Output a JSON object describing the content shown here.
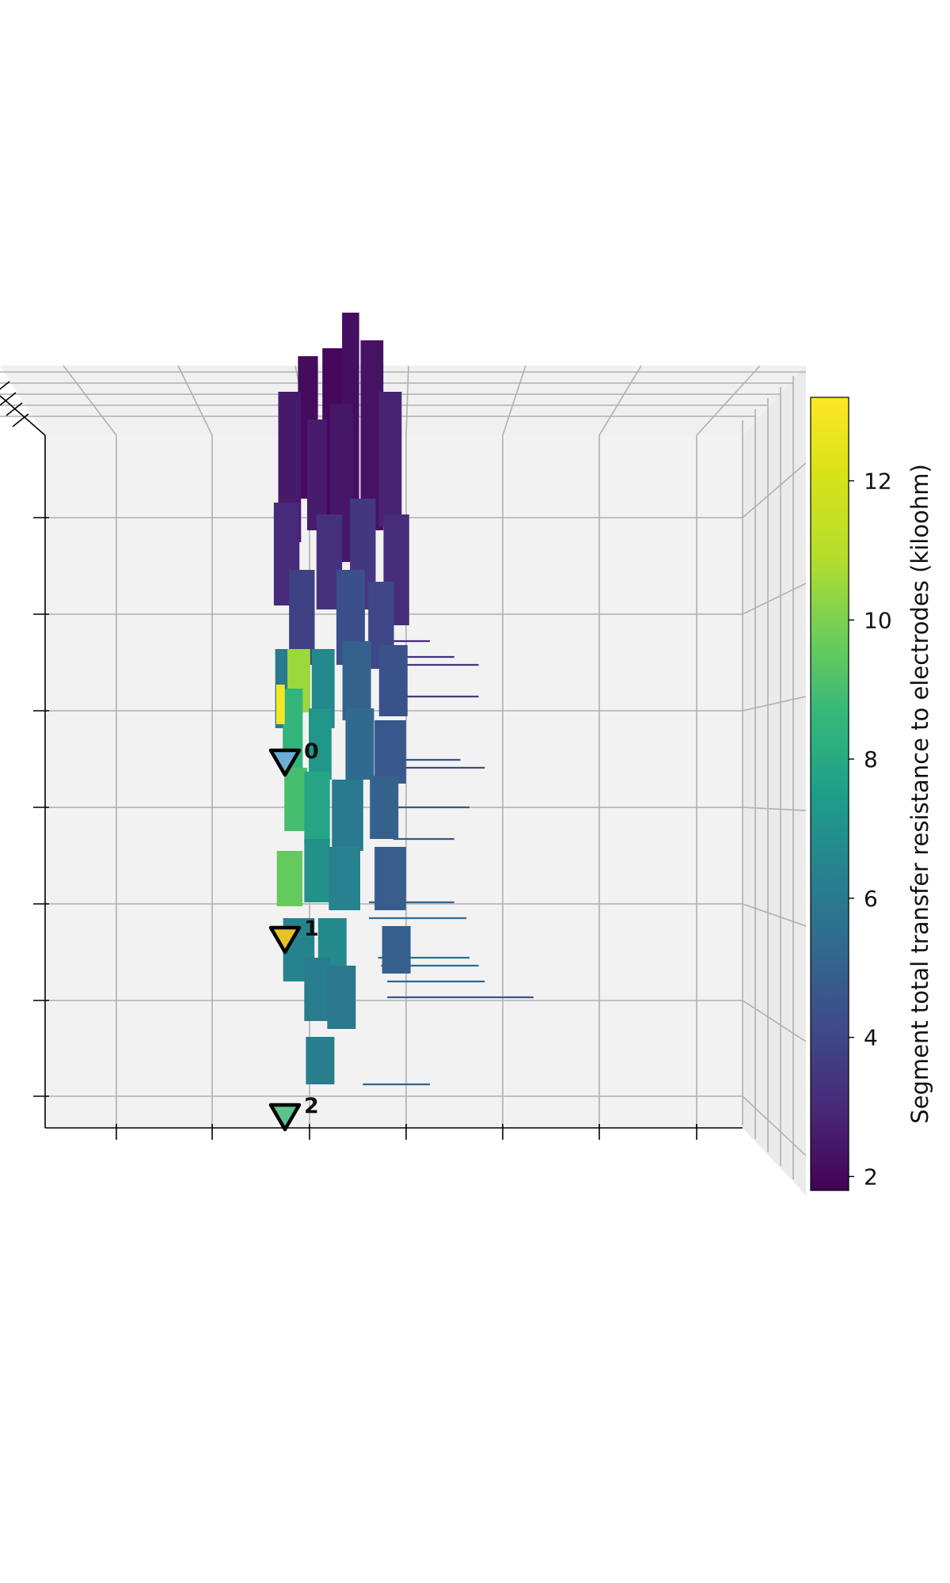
{
  "chart_data": {
    "type": "3d-morphology",
    "title": "",
    "colorbar": {
      "label": "Segment total transfer resistance to electrodes (kiloohm)",
      "min": 1.8,
      "max": 13.2,
      "ticks": [
        2,
        4,
        6,
        8,
        10,
        12
      ],
      "tick_labels": [
        "2",
        "4",
        "6",
        "8",
        "10",
        "12"
      ],
      "colormap": "viridis"
    },
    "electrodes": [
      {
        "label": "0",
        "color": "#6baed6",
        "resistance_approx": 6.5
      },
      {
        "label": "1",
        "color": "#e6c229",
        "resistance_approx": 12.5
      },
      {
        "label": "2",
        "color": "#5cc38d",
        "resistance_approx": 9.5
      }
    ],
    "segments": [
      {
        "x": 0.0,
        "z": 88,
        "len": 18,
        "w": 7,
        "value": 2.1
      },
      {
        "x": 4.0,
        "z": 87,
        "len": 22,
        "w": 7,
        "value": 2.0
      },
      {
        "x": 7.0,
        "z": 89,
        "len": 27,
        "w": 6,
        "value": 2.2
      },
      {
        "x": 10.5,
        "z": 87,
        "len": 24,
        "w": 8,
        "value": 2.3
      },
      {
        "x": -3.0,
        "z": 83,
        "len": 19,
        "w": 8,
        "value": 2.5
      },
      {
        "x": 1.5,
        "z": 82,
        "len": 14,
        "w": 7,
        "value": 2.6
      },
      {
        "x": 13.5,
        "z": 84,
        "len": 17,
        "w": 8,
        "value": 2.8
      },
      {
        "x": 5.5,
        "z": 81,
        "len": 20,
        "w": 8,
        "value": 2.4
      },
      {
        "x": -3.5,
        "z": 72,
        "len": 13,
        "w": 9,
        "value": 3.0
      },
      {
        "x": 3.5,
        "z": 71,
        "len": 12,
        "w": 9,
        "value": 3.3
      },
      {
        "x": 9.0,
        "z": 72,
        "len": 14,
        "w": 9,
        "value": 3.5
      },
      {
        "x": 14.5,
        "z": 70,
        "len": 14,
        "w": 9,
        "value": 3.1
      },
      {
        "x": -1.0,
        "z": 64,
        "len": 12,
        "w": 9,
        "value": 3.8
      },
      {
        "x": 7.0,
        "z": 64,
        "len": 12,
        "w": 10,
        "value": 4.3
      },
      {
        "x": 12.0,
        "z": 63,
        "len": 11,
        "w": 9,
        "value": 4.0
      },
      {
        "x": -3.5,
        "z": 55,
        "len": 10,
        "w": 8,
        "value": 6.0
      },
      {
        "x": -1.5,
        "z": 56,
        "len": 8,
        "w": 8,
        "value": 10.5
      },
      {
        "x": 2.5,
        "z": 55,
        "len": 10,
        "w": 8,
        "value": 6.6
      },
      {
        "x": 8.0,
        "z": 56,
        "len": 10,
        "w": 10,
        "value": 5.0
      },
      {
        "x": 14.0,
        "z": 56,
        "len": 9,
        "w": 10,
        "value": 4.4
      },
      {
        "x": -2.5,
        "z": 50,
        "len": 10,
        "w": 7,
        "value": 8.5
      },
      {
        "x": 2.0,
        "z": 48,
        "len": 9,
        "w": 8,
        "value": 7.2
      },
      {
        "x": 8.5,
        "z": 48,
        "len": 9,
        "w": 10,
        "value": 5.3
      },
      {
        "x": 13.5,
        "z": 47,
        "len": 8,
        "w": 11,
        "value": 4.6
      },
      {
        "x": -4.5,
        "z": 53,
        "len": 5,
        "w": 3,
        "value": 13.0
      },
      {
        "x": -2.0,
        "z": 41,
        "len": 8,
        "w": 8,
        "value": 9.0
      },
      {
        "x": 1.5,
        "z": 40,
        "len": 9,
        "w": 9,
        "value": 7.8
      },
      {
        "x": 6.5,
        "z": 39,
        "len": 9,
        "w": 11,
        "value": 6.0
      },
      {
        "x": 12.5,
        "z": 40,
        "len": 8,
        "w": 10,
        "value": 5.0
      },
      {
        "x": -3.0,
        "z": 31,
        "len": 7,
        "w": 9,
        "value": 9.6
      },
      {
        "x": 1.5,
        "z": 32,
        "len": 8,
        "w": 9,
        "value": 7.0
      },
      {
        "x": 6.0,
        "z": 31,
        "len": 8,
        "w": 11,
        "value": 6.3
      },
      {
        "x": 13.5,
        "z": 31,
        "len": 8,
        "w": 11,
        "value": 4.8
      },
      {
        "x": -1.5,
        "z": 22,
        "len": 8,
        "w": 11,
        "value": 6.4
      },
      {
        "x": 4.0,
        "z": 22,
        "len": 8,
        "w": 10,
        "value": 6.7
      },
      {
        "x": 14.5,
        "z": 22,
        "len": 6,
        "w": 10,
        "value": 4.9
      },
      {
        "x": 1.5,
        "z": 17,
        "len": 8,
        "w": 9,
        "value": 6.1
      },
      {
        "x": 5.5,
        "z": 16,
        "len": 8,
        "w": 10,
        "value": 5.9
      },
      {
        "x": 2.0,
        "z": 8,
        "len": 6,
        "w": 10,
        "value": 6.2
      }
    ],
    "branches": [
      {
        "x": 14.0,
        "z": 61,
        "len": 6,
        "value": 3.0
      },
      {
        "x": 14.0,
        "z": 59,
        "len": 10,
        "value": 3.2
      },
      {
        "x": 14.0,
        "z": 58,
        "len": 14,
        "value": 3.4
      },
      {
        "x": 14.0,
        "z": 54,
        "len": 14,
        "value": 3.6
      },
      {
        "x": 13.0,
        "z": 46,
        "len": 12,
        "value": 4.4
      },
      {
        "x": 15.0,
        "z": 45,
        "len": 14,
        "value": 4.2
      },
      {
        "x": 13.5,
        "z": 40,
        "len": 13,
        "value": 4.6
      },
      {
        "x": 14.0,
        "z": 36,
        "len": 10,
        "value": 4.6
      },
      {
        "x": 10.0,
        "z": 28,
        "len": 14,
        "value": 5.2
      },
      {
        "x": 10.0,
        "z": 26,
        "len": 16,
        "value": 5.3
      },
      {
        "x": 11.5,
        "z": 21,
        "len": 15,
        "value": 5.6
      },
      {
        "x": 12.0,
        "z": 20,
        "len": 16,
        "value": 5.4
      },
      {
        "x": 13.0,
        "z": 18,
        "len": 16,
        "value": 5.2
      },
      {
        "x": 13.0,
        "z": 16,
        "len": 24,
        "value": 4.6
      },
      {
        "x": 9.0,
        "z": 5,
        "len": 11,
        "value": 5.1
      }
    ]
  }
}
